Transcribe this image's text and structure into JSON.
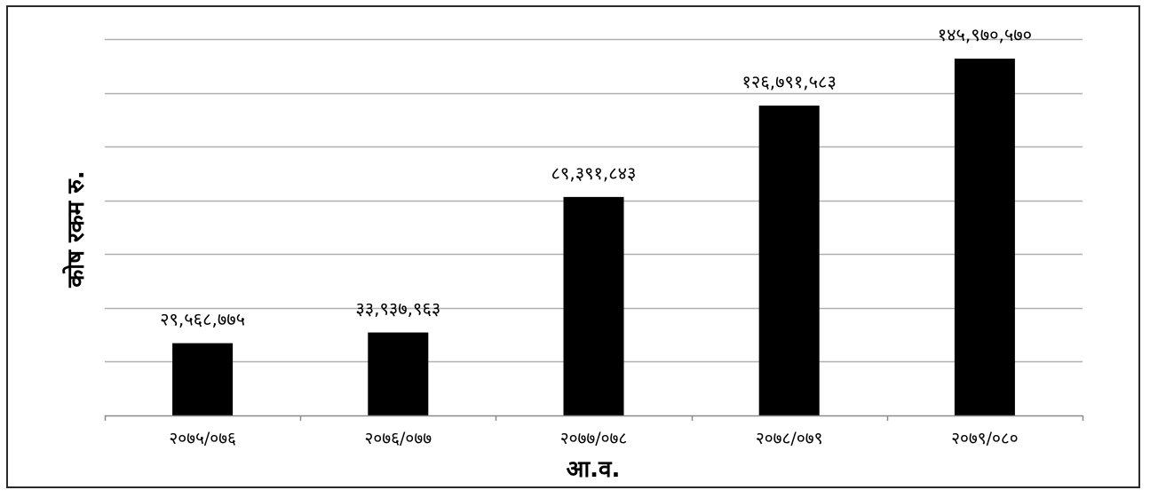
{
  "chart_data": {
    "type": "bar",
    "title": "",
    "xlabel": "आ.व.",
    "ylabel": "कोष रकम रु.",
    "categories": [
      "२०७५/०७६",
      "२०७६/०७७",
      "२०७७/०७८",
      "२०७८/०७९",
      "२०७९/०८०"
    ],
    "values": [
      29568775,
      33937963,
      89391843,
      126791583,
      145970570
    ],
    "value_labels": [
      "२९,५६८,७७५",
      "३३,९३७,९६३",
      "८९,३९१,८४३",
      "१२६,७९१,५८३",
      "१४५,९७०,५७०"
    ],
    "ylim": [
      0,
      154000000
    ],
    "y_gridlines": 7,
    "grid": true,
    "legend": "none",
    "colors": {
      "bar": "#000000",
      "grid": "#b0b0b0",
      "axis": "#8a8a8a"
    }
  }
}
